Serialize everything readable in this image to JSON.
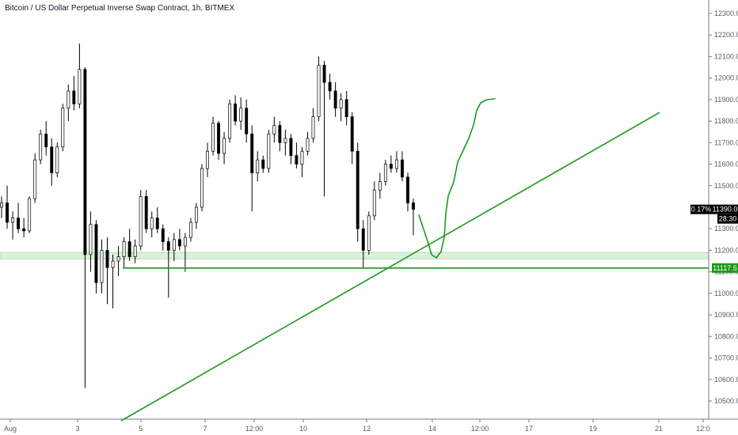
{
  "title": "Bitcoin / US Dollar Perpetual Inverse Swap Contract, 1h, BITMEX",
  "colors": {
    "up_candle": "#ffffff",
    "down_candle": "#000000",
    "wick": "#000000",
    "drawing": "#1a9a1a",
    "zone_fill": "#d9f0d9",
    "price_tag": "#000000",
    "axis_text": "#555a65"
  },
  "chart_data": {
    "type": "candlestick",
    "x_ticks": [
      "Aug",
      "3",
      "5",
      "7",
      "12:00",
      "10",
      "12",
      "14",
      "12:00",
      "17",
      "19",
      "21",
      "12:0"
    ],
    "y_ticks": [
      "12300.0",
      "12200.0",
      "12100.0",
      "12000.0",
      "11900.0",
      "11800.0",
      "11700.0",
      "11600.0",
      "11500.0",
      "11400.0",
      "11300.0",
      "11200.0",
      "11100.0",
      "11000.0",
      "10900.0",
      "10800.0",
      "10700.0",
      "10600.0",
      "10500.0"
    ],
    "ylim": [
      10460,
      12340
    ],
    "candles": [
      {
        "o": 11400,
        "h": 11450,
        "l": 11350,
        "c": 11420
      },
      {
        "o": 11420,
        "h": 11500,
        "l": 11300,
        "c": 11330
      },
      {
        "o": 11330,
        "h": 11380,
        "l": 11250,
        "c": 11350
      },
      {
        "o": 11350,
        "h": 11420,
        "l": 11280,
        "c": 11300
      },
      {
        "o": 11300,
        "h": 11350,
        "l": 11260,
        "c": 11290
      },
      {
        "o": 11290,
        "h": 11450,
        "l": 11280,
        "c": 11440
      },
      {
        "o": 11440,
        "h": 11650,
        "l": 11420,
        "c": 11620
      },
      {
        "o": 11620,
        "h": 11760,
        "l": 11600,
        "c": 11740
      },
      {
        "o": 11740,
        "h": 11800,
        "l": 11640,
        "c": 11680
      },
      {
        "o": 11680,
        "h": 11720,
        "l": 11500,
        "c": 11560
      },
      {
        "o": 11560,
        "h": 11700,
        "l": 11540,
        "c": 11680
      },
      {
        "o": 11680,
        "h": 11880,
        "l": 11660,
        "c": 11860
      },
      {
        "o": 11860,
        "h": 11970,
        "l": 11800,
        "c": 11940
      },
      {
        "o": 11940,
        "h": 12010,
        "l": 11850,
        "c": 11880
      },
      {
        "o": 11880,
        "h": 12160,
        "l": 11860,
        "c": 12040
      },
      {
        "o": 12040,
        "h": 12050,
        "l": 10560,
        "c": 11180
      },
      {
        "o": 11180,
        "h": 11380,
        "l": 11100,
        "c": 11320
      },
      {
        "o": 11320,
        "h": 11340,
        "l": 11000,
        "c": 11050
      },
      {
        "o": 11050,
        "h": 11250,
        "l": 11000,
        "c": 11200
      },
      {
        "o": 11200,
        "h": 11260,
        "l": 10950,
        "c": 11120
      },
      {
        "o": 11120,
        "h": 11180,
        "l": 10930,
        "c": 11150
      },
      {
        "o": 11150,
        "h": 11220,
        "l": 11080,
        "c": 11170
      },
      {
        "o": 11170,
        "h": 11260,
        "l": 11120,
        "c": 11240
      },
      {
        "o": 11240,
        "h": 11300,
        "l": 11150,
        "c": 11170
      },
      {
        "o": 11170,
        "h": 11250,
        "l": 11140,
        "c": 11220
      },
      {
        "o": 11220,
        "h": 11480,
        "l": 11200,
        "c": 11450
      },
      {
        "o": 11450,
        "h": 11480,
        "l": 11280,
        "c": 11300
      },
      {
        "o": 11300,
        "h": 11380,
        "l": 11260,
        "c": 11350
      },
      {
        "o": 11350,
        "h": 11400,
        "l": 11280,
        "c": 11300
      },
      {
        "o": 11300,
        "h": 11320,
        "l": 11200,
        "c": 11240
      },
      {
        "o": 11240,
        "h": 11260,
        "l": 10980,
        "c": 11200
      },
      {
        "o": 11200,
        "h": 11280,
        "l": 11150,
        "c": 11250
      },
      {
        "o": 11250,
        "h": 11300,
        "l": 11200,
        "c": 11220
      },
      {
        "o": 11220,
        "h": 11280,
        "l": 11100,
        "c": 11260
      },
      {
        "o": 11260,
        "h": 11350,
        "l": 11240,
        "c": 11330
      },
      {
        "o": 11330,
        "h": 11420,
        "l": 11300,
        "c": 11400
      },
      {
        "o": 11400,
        "h": 11600,
        "l": 11380,
        "c": 11580
      },
      {
        "o": 11580,
        "h": 11700,
        "l": 11540,
        "c": 11660
      },
      {
        "o": 11660,
        "h": 11820,
        "l": 11640,
        "c": 11790
      },
      {
        "o": 11790,
        "h": 11800,
        "l": 11620,
        "c": 11650
      },
      {
        "o": 11650,
        "h": 11750,
        "l": 11600,
        "c": 11720
      },
      {
        "o": 11720,
        "h": 11900,
        "l": 11700,
        "c": 11880
      },
      {
        "o": 11880,
        "h": 11920,
        "l": 11780,
        "c": 11800
      },
      {
        "o": 11800,
        "h": 11910,
        "l": 11760,
        "c": 11860
      },
      {
        "o": 11860,
        "h": 11900,
        "l": 11700,
        "c": 11740
      },
      {
        "o": 11740,
        "h": 11780,
        "l": 11380,
        "c": 11560
      },
      {
        "o": 11560,
        "h": 11660,
        "l": 11520,
        "c": 11620
      },
      {
        "o": 11620,
        "h": 11640,
        "l": 11560,
        "c": 11580
      },
      {
        "o": 11580,
        "h": 11760,
        "l": 11560,
        "c": 11740
      },
      {
        "o": 11740,
        "h": 11820,
        "l": 11700,
        "c": 11780
      },
      {
        "o": 11780,
        "h": 11800,
        "l": 11660,
        "c": 11700
      },
      {
        "o": 11700,
        "h": 11760,
        "l": 11640,
        "c": 11720
      },
      {
        "o": 11720,
        "h": 11740,
        "l": 11600,
        "c": 11640
      },
      {
        "o": 11640,
        "h": 11700,
        "l": 11580,
        "c": 11600
      },
      {
        "o": 11600,
        "h": 11680,
        "l": 11540,
        "c": 11660
      },
      {
        "o": 11660,
        "h": 11750,
        "l": 11640,
        "c": 11720
      },
      {
        "o": 11720,
        "h": 11860,
        "l": 11700,
        "c": 11820
      },
      {
        "o": 11820,
        "h": 12100,
        "l": 11800,
        "c": 12060
      },
      {
        "o": 12060,
        "h": 12080,
        "l": 11450,
        "c": 11980
      },
      {
        "o": 11980,
        "h": 12020,
        "l": 11900,
        "c": 11940
      },
      {
        "o": 11940,
        "h": 11980,
        "l": 11820,
        "c": 11860
      },
      {
        "o": 11860,
        "h": 11930,
        "l": 11800,
        "c": 11900
      },
      {
        "o": 11900,
        "h": 11940,
        "l": 11780,
        "c": 11820
      },
      {
        "o": 11820,
        "h": 11840,
        "l": 11600,
        "c": 11660
      },
      {
        "o": 11660,
        "h": 11700,
        "l": 11240,
        "c": 11300
      },
      {
        "o": 11300,
        "h": 11340,
        "l": 11120,
        "c": 11200
      },
      {
        "o": 11200,
        "h": 11380,
        "l": 11180,
        "c": 11360
      },
      {
        "o": 11360,
        "h": 11520,
        "l": 11340,
        "c": 11480
      },
      {
        "o": 11480,
        "h": 11560,
        "l": 11440,
        "c": 11520
      },
      {
        "o": 11520,
        "h": 11620,
        "l": 11500,
        "c": 11600
      },
      {
        "o": 11600,
        "h": 11640,
        "l": 11560,
        "c": 11580
      },
      {
        "o": 11580,
        "h": 11660,
        "l": 11560,
        "c": 11620
      },
      {
        "o": 11620,
        "h": 11660,
        "l": 11520,
        "c": 11540
      },
      {
        "o": 11540,
        "h": 11560,
        "l": 11380,
        "c": 11420
      },
      {
        "o": 11420,
        "h": 11440,
        "l": 11270,
        "c": 11390
      }
    ],
    "horizontal_line": 11117.5,
    "horizontal_line_label": "11117.5",
    "support_zone": [
      11160,
      11190
    ],
    "last_price_label": "11390.0",
    "last_change_label": "0.17%",
    "countdown_label": "28:30",
    "trendline": {
      "from_index": 27,
      "from_price": 10420,
      "to_index": 140,
      "to_price": 11840
    },
    "projection_path": [
      {
        "i": 90,
        "p": 11370
      },
      {
        "i": 92,
        "p": 11280
      },
      {
        "i": 93,
        "p": 11160
      },
      {
        "i": 95,
        "p": 11170
      },
      {
        "i": 97,
        "p": 11320
      },
      {
        "i": 99,
        "p": 11520
      },
      {
        "i": 102,
        "p": 11700
      },
      {
        "i": 104,
        "p": 11820
      },
      {
        "i": 107,
        "p": 11890
      },
      {
        "i": 109,
        "p": 11900
      }
    ]
  }
}
